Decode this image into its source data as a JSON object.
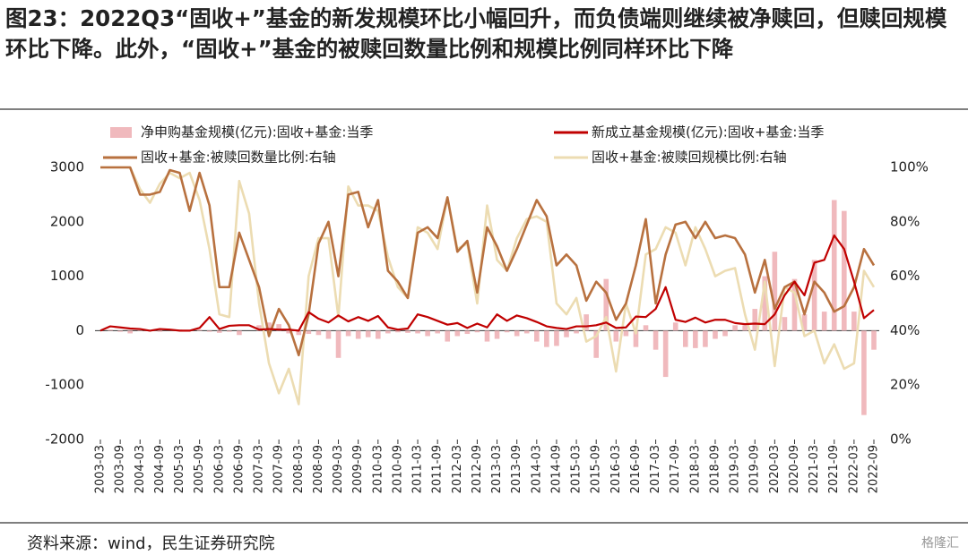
{
  "chart_data": {
    "type": "bar",
    "title": "图23：2022Q3“固收+”基金的新发规模环比小幅回升，而负债端则继续被净赎回，但赎回规模环比下降。此外，“固收+”基金的被赎回数量比例和规模比例同样环比下降",
    "source": "资料来源：wind，民生证券研究院",
    "watermark": "格隆汇",
    "legend": "top",
    "categories": [
      "2003-03",
      null,
      "2003-09",
      null,
      "2004-03",
      null,
      "2004-09",
      null,
      "2005-03",
      null,
      "2005-09",
      null,
      "2006-03",
      null,
      "2006-09",
      null,
      "2007-03",
      null,
      "2007-09",
      null,
      "2008-03",
      null,
      "2008-09",
      null,
      "2009-03",
      null,
      "2009-09",
      null,
      "2010-03",
      null,
      "2010-09",
      null,
      "2011-03",
      null,
      "2011-09",
      null,
      "2012-03",
      null,
      "2012-09",
      null,
      "2013-03",
      null,
      "2013-09",
      null,
      "2014-03",
      null,
      "2014-09",
      null,
      "2015-03",
      null,
      "2015-09",
      null,
      "2016-03",
      null,
      "2016-09",
      null,
      "2017-03",
      null,
      "2017-09",
      null,
      "2018-03",
      null,
      "2018-09",
      null,
      "2019-03",
      null,
      "2019-09",
      null,
      "2020-03",
      null,
      "2020-09",
      null,
      "2021-03",
      null,
      "2021-09",
      null,
      "2022-03",
      null,
      "2022-09"
    ],
    "ylim": [
      -2000,
      3000
    ],
    "yticks": [
      -2000,
      -1000,
      0,
      1000,
      2000,
      3000
    ],
    "y2lim": [
      0,
      100
    ],
    "y2ticks": [
      {
        "value": 0,
        "label": "0%"
      },
      {
        "value": 20,
        "label": "20%"
      },
      {
        "value": 40,
        "label": "40%"
      },
      {
        "value": 60,
        "label": "60%"
      },
      {
        "value": 80,
        "label": "80%"
      },
      {
        "value": 100,
        "label": "100%"
      }
    ],
    "series": [
      {
        "name": "净申购基金规模(亿元):固收+基金:当季",
        "type": "bar",
        "color": "#f0b9bd",
        "values": [
          0,
          20,
          -20,
          -50,
          10,
          0,
          -20,
          0,
          20,
          0,
          20,
          -20,
          -40,
          -20,
          -80,
          0,
          100,
          150,
          120,
          -50,
          -80,
          -60,
          -80,
          -150,
          -500,
          -100,
          -150,
          -120,
          -150,
          -50,
          -30,
          -40,
          -50,
          -100,
          -50,
          -200,
          -100,
          -60,
          -30,
          -200,
          -150,
          -30,
          -100,
          -50,
          -200,
          -300,
          -280,
          -120,
          -50,
          300,
          -500,
          950,
          -200,
          -100,
          -300,
          100,
          -350,
          -850,
          150,
          -300,
          -320,
          -300,
          -150,
          -100,
          100,
          100,
          400,
          1000,
          1450,
          250,
          950,
          300,
          1300,
          350,
          2400,
          2200,
          350,
          -1550,
          -350
        ]
      },
      {
        "name": "新成立基金规模(亿元):固收+基金:当季",
        "type": "line",
        "color": "#c00000",
        "values": [
          0,
          80,
          60,
          40,
          30,
          0,
          30,
          20,
          0,
          0,
          50,
          250,
          30,
          90,
          100,
          100,
          20,
          30,
          20,
          20,
          0,
          340,
          220,
          150,
          280,
          170,
          250,
          180,
          270,
          60,
          20,
          40,
          300,
          250,
          180,
          110,
          140,
          50,
          130,
          60,
          300,
          180,
          280,
          230,
          160,
          80,
          50,
          30,
          80,
          80,
          100,
          150,
          50,
          60,
          260,
          250,
          400,
          800,
          200,
          160,
          240,
          150,
          200,
          200,
          140,
          120,
          130,
          120,
          300,
          650,
          900,
          650,
          1250,
          1300,
          1750,
          1500,
          900,
          230,
          380
        ]
      },
      {
        "name": "固收+基金:被赎回数量比例:右轴",
        "type": "line",
        "axis": "y2",
        "color": "#b8713f",
        "values": [
          100,
          100,
          100,
          100,
          90,
          90,
          91,
          99,
          98,
          84,
          98,
          86,
          56,
          56,
          76,
          66,
          56,
          38,
          48,
          42,
          31,
          46,
          72,
          80,
          60,
          90,
          91,
          78,
          88,
          62,
          58,
          52,
          76,
          78,
          74,
          89,
          69,
          73,
          54,
          78,
          71,
          62,
          70,
          79,
          88,
          82,
          64,
          68,
          64,
          51,
          58,
          54,
          44,
          50,
          64,
          81,
          50,
          68,
          79,
          80,
          74,
          80,
          74,
          75,
          74,
          68,
          54,
          66,
          48,
          56,
          58,
          46,
          58,
          54,
          47,
          49,
          56,
          70,
          64
        ]
      },
      {
        "name": "固收+基金:被赎回规模比例:右轴",
        "type": "line",
        "axis": "y2",
        "color": "#ecdcb2",
        "values": [
          100,
          100,
          100,
          100,
          92,
          87,
          94,
          98,
          96,
          98,
          88,
          70,
          46,
          45,
          95,
          83,
          50,
          28,
          17,
          26,
          13,
          60,
          74,
          74,
          45,
          93,
          86,
          86,
          84,
          67,
          56,
          52,
          78,
          76,
          70,
          89,
          70,
          72,
          50,
          86,
          66,
          62,
          74,
          81,
          82,
          80,
          50,
          46,
          52,
          36,
          38,
          45,
          25,
          50,
          39,
          68,
          70,
          78,
          76,
          64,
          78,
          70,
          60,
          62,
          63,
          46,
          33,
          58,
          27,
          56,
          54,
          38,
          40,
          28,
          35,
          26,
          28,
          62,
          56
        ]
      }
    ]
  }
}
